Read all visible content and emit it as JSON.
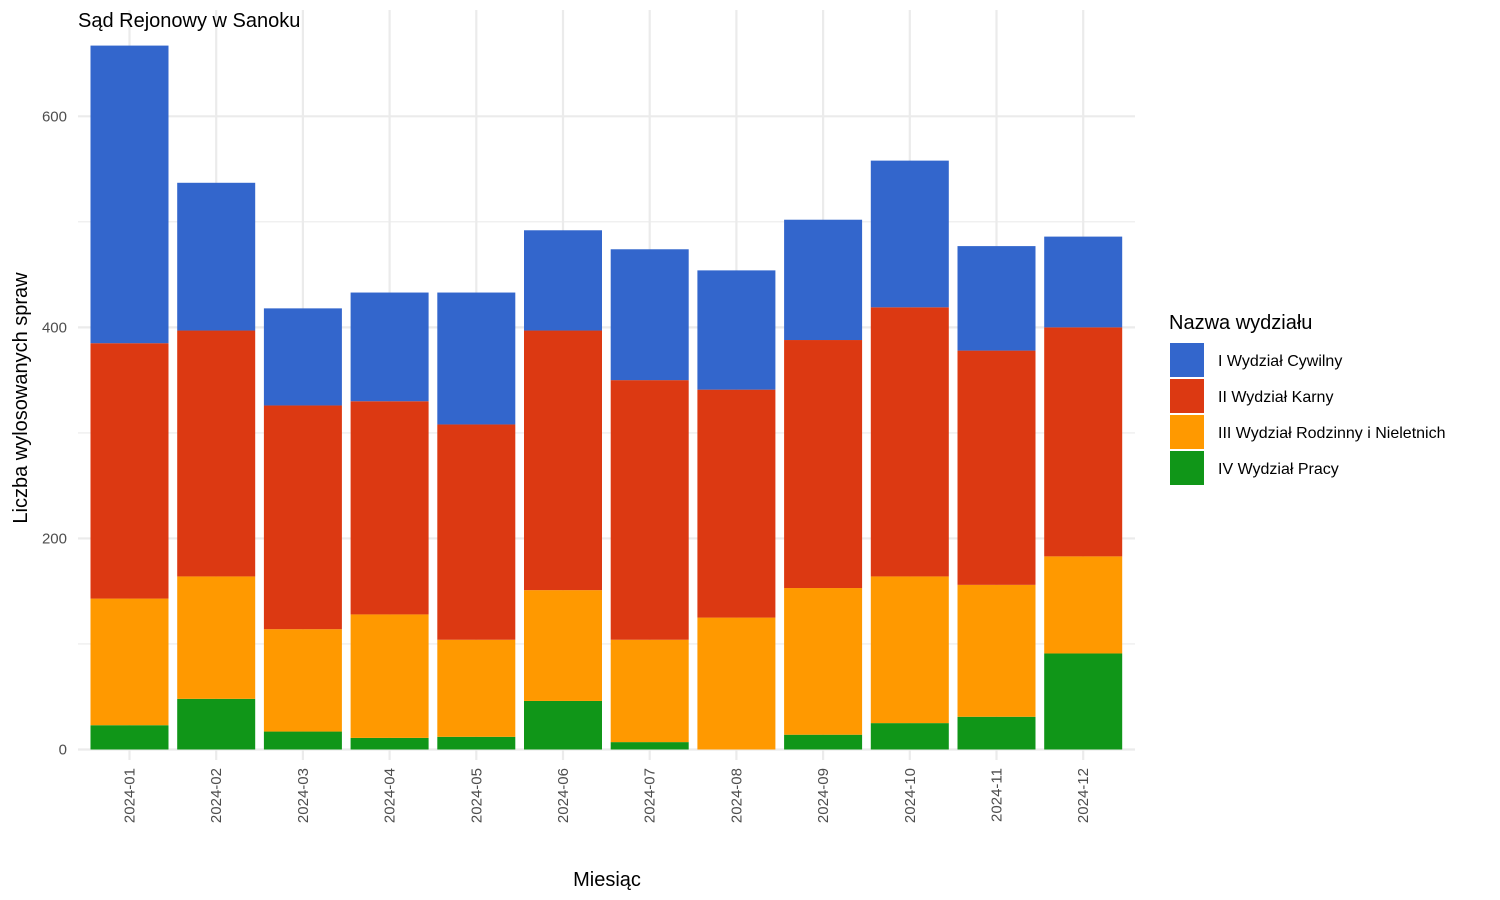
{
  "chart_data": {
    "type": "bar",
    "stacked": true,
    "title": "Sąd Rejonowy w Sanoku",
    "xlabel": "Miesiąc",
    "ylabel": "Liczba wylosowanych spraw",
    "ylim": [
      0,
      667
    ],
    "yticks": [
      0,
      200,
      400,
      600
    ],
    "grid": true,
    "legend_position": "right",
    "legend_title": "Nazwa wydziału",
    "categories": [
      "2024-01",
      "2024-02",
      "2024-03",
      "2024-04",
      "2024-05",
      "2024-06",
      "2024-07",
      "2024-08",
      "2024-09",
      "2024-10",
      "2024-11",
      "2024-12"
    ],
    "series": [
      {
        "name": "IV Wydział Pracy",
        "color": "#109618",
        "values": [
          23,
          48,
          17,
          11,
          12,
          46,
          7,
          0,
          14,
          25,
          31,
          91
        ]
      },
      {
        "name": "III Wydział Rodzinny i Nieletnich",
        "color": "#FF9900",
        "values": [
          120,
          116,
          97,
          117,
          92,
          105,
          97,
          125,
          139,
          139,
          125,
          92
        ]
      },
      {
        "name": "II Wydział Karny",
        "color": "#DC3912",
        "values": [
          242,
          233,
          212,
          202,
          204,
          246,
          246,
          216,
          235,
          255,
          222,
          217
        ]
      },
      {
        "name": "I Wydział Cywilny",
        "color": "#3366CC",
        "values": [
          282,
          140,
          92,
          103,
          125,
          95,
          124,
          113,
          114,
          139,
          99,
          86
        ]
      }
    ],
    "legend_order": [
      "I Wydział Cywilny",
      "II Wydział Karny",
      "III Wydział Rodzinny i Nieletnich",
      "IV Wydział Pracy"
    ]
  }
}
